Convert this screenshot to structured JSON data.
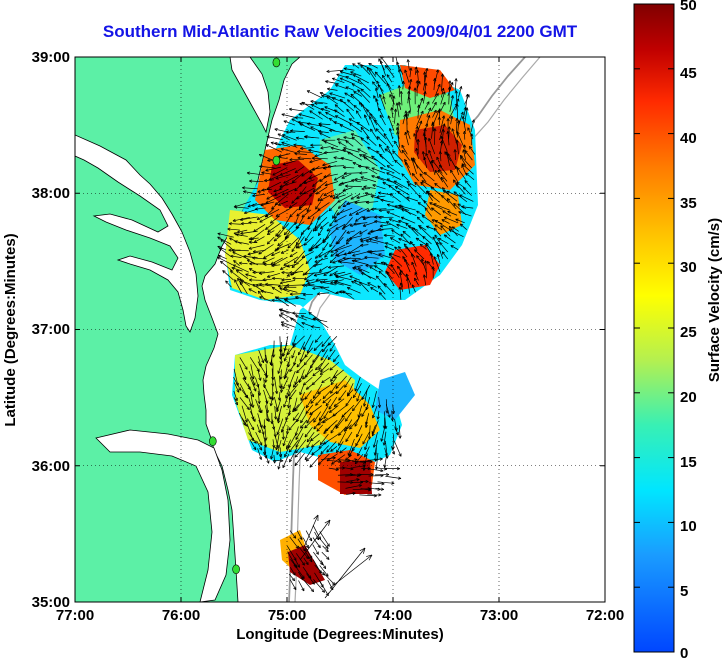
{
  "title": "Southern Mid-Atlantic Raw Velocities 2009/04/01 2200 GMT",
  "x_axis": {
    "label": "Longitude (Degrees:Minutes)",
    "ticks": [
      "77:00",
      "76:00",
      "75:00",
      "74:00",
      "73:00",
      "72:00"
    ]
  },
  "y_axis": {
    "label": "Latitude (Degrees:Minutes)",
    "ticks": [
      "39:00",
      "38:00",
      "37:00",
      "36:00",
      "35:00"
    ]
  },
  "colorbar": {
    "label": "Surface Velocity (cm/s)",
    "ticks": [
      "50",
      "45",
      "40",
      "35",
      "30",
      "25",
      "20",
      "15",
      "10",
      "5",
      "0"
    ],
    "min": 0,
    "max": 50
  },
  "colors": {
    "land": "#5cf0a6",
    "water": "#ffffff",
    "title": "#1414e6",
    "station": "#33dd33"
  },
  "map_data": {
    "lon_range": [
      -77,
      -72
    ],
    "lat_range": [
      35,
      39
    ],
    "grid": true,
    "stations": [
      {
        "lon": -75.1,
        "lat": 38.96
      },
      {
        "lon": -75.1,
        "lat": 38.24
      },
      {
        "lon": -75.7,
        "lat": 36.18
      },
      {
        "lon": -75.48,
        "lat": 35.24
      }
    ]
  }
}
